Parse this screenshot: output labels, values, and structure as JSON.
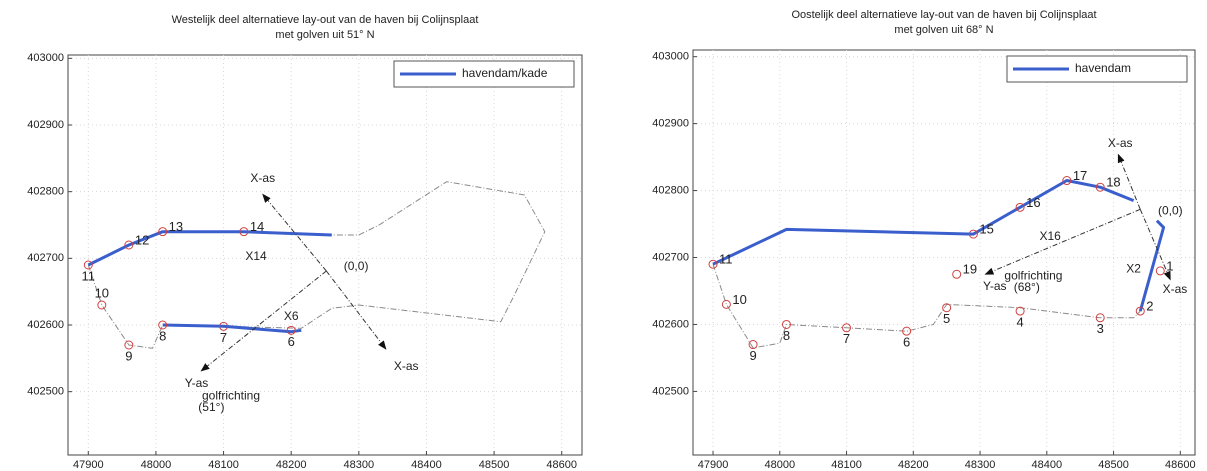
{
  "chart_data": [
    {
      "type": "line",
      "title": "Westelijk deel alternatieve lay-out van de haven bij Colijnsplaat",
      "subtitle": "met golven uit 51° N",
      "xlim": [
        47870,
        48630
      ],
      "ylim": [
        402405,
        403005
      ],
      "xticks": [
        47900,
        48000,
        48100,
        48200,
        48300,
        48400,
        48500,
        48600
      ],
      "yticks": [
        402500,
        402600,
        402700,
        402800,
        402900,
        403000
      ],
      "grid": true,
      "legend": "upper right",
      "series": [
        {
          "color": "#8a8a8a",
          "dash": true,
          "x": [
            47900,
            47920,
            47960,
            47995,
            48010,
            48100,
            48215,
            48260,
            48300,
            48510,
            48530,
            48575,
            48545,
            48430,
            48330,
            48300,
            48260
          ],
          "values": [
            402690,
            402630,
            402570,
            402565,
            402600,
            402598,
            402595,
            402625,
            402630,
            402605,
            402645,
            402740,
            402795,
            402815,
            402750,
            402735,
            402735
          ]
        },
        {
          "name": "havendam/kade",
          "color": "#3a5fcd",
          "x": [
            47900,
            47960,
            48010,
            48130,
            48260,
            null,
            48010,
            48100,
            48200,
            48215
          ],
          "values": [
            402690,
            402720,
            402740,
            402740,
            402735,
            null,
            402600,
            402598,
            402590,
            402592
          ]
        }
      ],
      "points": [
        {
          "label": "11",
          "x": 47900,
          "y": 402690,
          "position": "below"
        },
        {
          "label": "12",
          "x": 47960,
          "y": 402720,
          "position": "right"
        },
        {
          "label": "13",
          "x": 48010,
          "y": 402740,
          "position": "right"
        },
        {
          "label": "14",
          "x": 48130,
          "y": 402740,
          "position": "right"
        },
        {
          "label": "10",
          "x": 47920,
          "y": 402630,
          "position": "above"
        },
        {
          "label": "9",
          "x": 47960,
          "y": 402570,
          "position": "below"
        },
        {
          "label": "8",
          "x": 48010,
          "y": 402600,
          "position": "below"
        },
        {
          "label": "7",
          "x": 48100,
          "y": 402598,
          "position": "below"
        },
        {
          "label": "6",
          "x": 48200,
          "y": 402592,
          "position": "below"
        }
      ],
      "arrows": [
        {
          "x": [
            48252,
            48158
          ],
          "y": [
            402681,
            402796
          ]
        },
        {
          "x": [
            48252,
            48340
          ],
          "y": [
            402681,
            402564
          ]
        },
        {
          "x": [
            48252,
            48067
          ],
          "y": [
            402681,
            402531
          ]
        }
      ],
      "annotations": [
        {
          "text": "X-as",
          "x": 48158,
          "y": 402819
        },
        {
          "text": "X-as",
          "x": 48370,
          "y": 402537
        },
        {
          "text": "Y-as",
          "x": 48060,
          "y": 402512
        },
        {
          "text": "golfrichting",
          "x": 48111,
          "y": 402493
        },
        {
          "text": "(51°)",
          "x": 48082,
          "y": 402476
        },
        {
          "text": "(0,0)",
          "x": 48296,
          "y": 402687
        },
        {
          "text": "X14",
          "x": 48148,
          "y": 402702
        },
        {
          "text": "X6",
          "x": 48200,
          "y": 402612
        }
      ]
    },
    {
      "type": "line",
      "title": "Oostelijk deel alternatieve lay-out van de haven bij Colijnsplaat",
      "subtitle": "met golven uit 68° N",
      "xlim": [
        47870,
        48622
      ],
      "ylim": [
        402405,
        403010
      ],
      "xticks": [
        47900,
        48000,
        48100,
        48200,
        48300,
        48400,
        48500,
        48600
      ],
      "yticks": [
        402500,
        402600,
        402700,
        402800,
        402900,
        403000
      ],
      "grid": true,
      "legend": "upper right",
      "series": [
        {
          "color": "#8a8a8a",
          "dash": true,
          "x": [
            47900,
            47920,
            47960,
            48000,
            48010,
            48100,
            48190,
            48230,
            48250,
            48360,
            48480,
            48530,
            48540
          ],
          "values": [
            402690,
            402630,
            402565,
            402572,
            402600,
            402595,
            402590,
            402600,
            402630,
            402625,
            402610,
            402610,
            402620
          ]
        },
        {
          "name": "havendam",
          "color": "#3a5fcd",
          "x": [
            47900,
            48010,
            48290,
            48360,
            48430,
            48480,
            48530,
            null,
            48565,
            48575,
            48540
          ],
          "values": [
            402690,
            402742,
            402735,
            402775,
            402815,
            402805,
            402785,
            null,
            402755,
            402745,
            402620
          ]
        }
      ],
      "points": [
        {
          "label": "1",
          "x": 48570,
          "y": 402680,
          "position": "right"
        },
        {
          "label": "2",
          "x": 48540,
          "y": 402620,
          "position": "right"
        },
        {
          "label": "3",
          "x": 48480,
          "y": 402610,
          "position": "below"
        },
        {
          "label": "4",
          "x": 48360,
          "y": 402620,
          "position": "below"
        },
        {
          "label": "5",
          "x": 48250,
          "y": 402625,
          "position": "below"
        },
        {
          "label": "6",
          "x": 48190,
          "y": 402590,
          "position": "below"
        },
        {
          "label": "7",
          "x": 48100,
          "y": 402595,
          "position": "below"
        },
        {
          "label": "8",
          "x": 48010,
          "y": 402600,
          "position": "below"
        },
        {
          "label": "9",
          "x": 47960,
          "y": 402570,
          "position": "below"
        },
        {
          "label": "10",
          "x": 47920,
          "y": 402630,
          "position": "right"
        },
        {
          "label": "11",
          "x": 47900,
          "y": 402690,
          "position": "right"
        },
        {
          "label": "15",
          "x": 48290,
          "y": 402735,
          "position": "right"
        },
        {
          "label": "16",
          "x": 48360,
          "y": 402775,
          "position": "right"
        },
        {
          "label": "17",
          "x": 48430,
          "y": 402815,
          "position": "right"
        },
        {
          "label": "18",
          "x": 48480,
          "y": 402805,
          "position": "right"
        },
        {
          "label": "19",
          "x": 48265,
          "y": 402675,
          "position": "right"
        }
      ],
      "arrows": [
        {
          "x": [
            48540,
            48507
          ],
          "y": [
            402772,
            402854
          ]
        },
        {
          "x": [
            48540,
            48585
          ],
          "y": [
            402772,
            402667
          ]
        },
        {
          "x": [
            48540,
            48308
          ],
          "y": [
            402772,
            402675
          ]
        }
      ],
      "annotations": [
        {
          "text": "X-as",
          "x": 48510,
          "y": 402870
        },
        {
          "text": "X-as",
          "x": 48592,
          "y": 402652
        },
        {
          "text": "Y-as",
          "x": 48322,
          "y": 402656
        },
        {
          "text": "golfrichting",
          "x": 48380,
          "y": 402672
        },
        {
          "text": "(68°)",
          "x": 48370,
          "y": 402655
        },
        {
          "text": "(0,0)",
          "x": 48585,
          "y": 402769
        },
        {
          "text": "X16",
          "x": 48405,
          "y": 402731
        },
        {
          "text": "X2",
          "x": 48530,
          "y": 402682
        }
      ]
    }
  ]
}
